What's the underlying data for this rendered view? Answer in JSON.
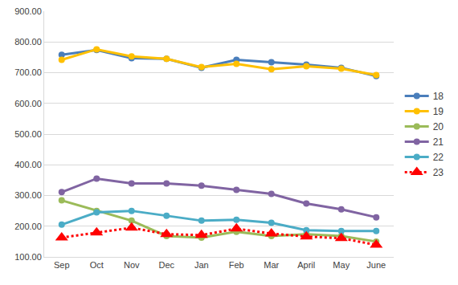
{
  "chart_data": {
    "type": "line",
    "categories": [
      "Sep",
      "Oct",
      "Nov",
      "Dec",
      "Jan",
      "Feb",
      "Mar",
      "April",
      "May",
      "June"
    ],
    "series": [
      {
        "name": "18",
        "color": "#4a7ebb",
        "marker": "circle",
        "line_style": "solid",
        "values": [
          758,
          774,
          747,
          745,
          716,
          742,
          734,
          726,
          716,
          689
        ]
      },
      {
        "name": "19",
        "color": "#ffc000",
        "marker": "circle",
        "line_style": "solid",
        "values": [
          742,
          776,
          753,
          745,
          718,
          729,
          711,
          721,
          713,
          692
        ]
      },
      {
        "name": "20",
        "color": "#9bbb59",
        "marker": "circle",
        "line_style": "solid",
        "values": [
          284,
          250,
          218,
          168,
          163,
          182,
          168,
          174,
          168,
          150
        ]
      },
      {
        "name": "21",
        "color": "#8064a2",
        "marker": "circle",
        "line_style": "solid",
        "values": [
          311,
          355,
          339,
          339,
          332,
          318,
          305,
          274,
          255,
          229
        ]
      },
      {
        "name": "22",
        "color": "#4bacc6",
        "marker": "circle",
        "line_style": "solid",
        "values": [
          205,
          245,
          250,
          234,
          218,
          221,
          211,
          187,
          184,
          184
        ]
      },
      {
        "name": "23",
        "color": "#ff0000",
        "marker": "triangle",
        "line_style": "dotted",
        "values": [
          163,
          179,
          195,
          174,
          171,
          192,
          176,
          166,
          161,
          139
        ]
      }
    ],
    "ylim": [
      100,
      900
    ],
    "yticks": [
      {
        "value": 100,
        "label": "100.00"
      },
      {
        "value": 200,
        "label": "200.00"
      },
      {
        "value": 300,
        "label": "300.00"
      },
      {
        "value": 400,
        "label": "400.00"
      },
      {
        "value": 500,
        "label": "500.00"
      },
      {
        "value": 600,
        "label": "600.00"
      },
      {
        "value": 700,
        "label": "700.00"
      },
      {
        "value": 800,
        "label": "800.00"
      },
      {
        "value": 900,
        "label": "900.00"
      }
    ],
    "grid": true,
    "legend": "right"
  }
}
